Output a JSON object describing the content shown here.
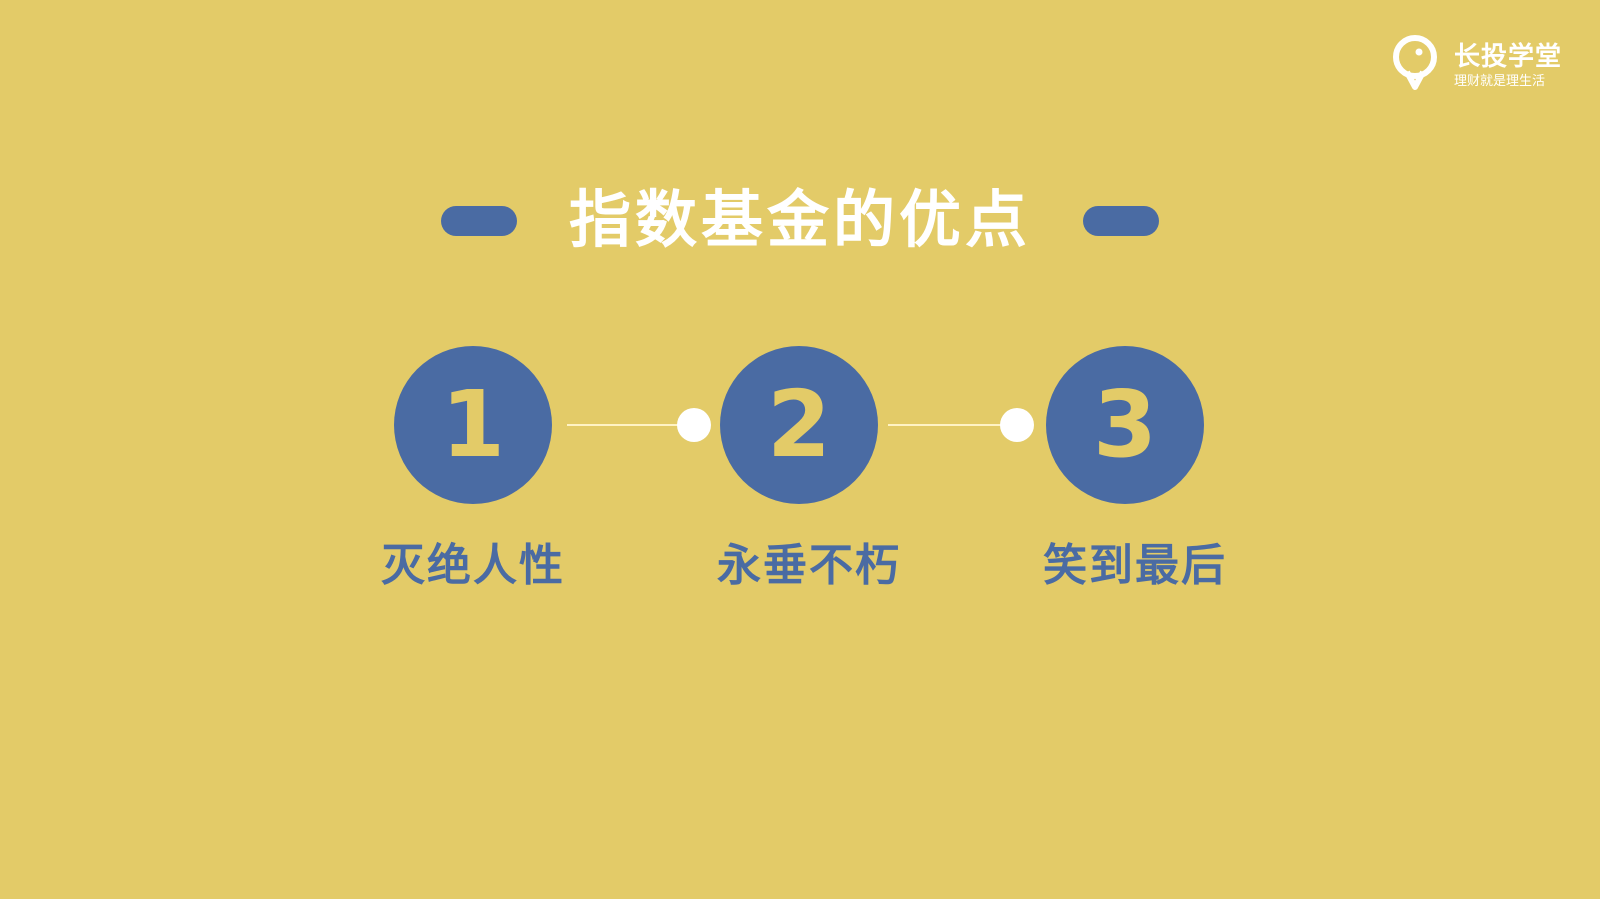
{
  "brand": {
    "name": "长投学堂",
    "slogan": "理财就是理生活",
    "icon": "lightbulb-logo-icon"
  },
  "title": "指数基金的优点",
  "steps": [
    {
      "number": "1",
      "label": "灭绝人性"
    },
    {
      "number": "2",
      "label": "永垂不朽"
    },
    {
      "number": "3",
      "label": "笑到最后"
    }
  ],
  "colors": {
    "background": "#e3cb68",
    "accent": "#4a6ba3",
    "text_light": "#ffffff"
  }
}
